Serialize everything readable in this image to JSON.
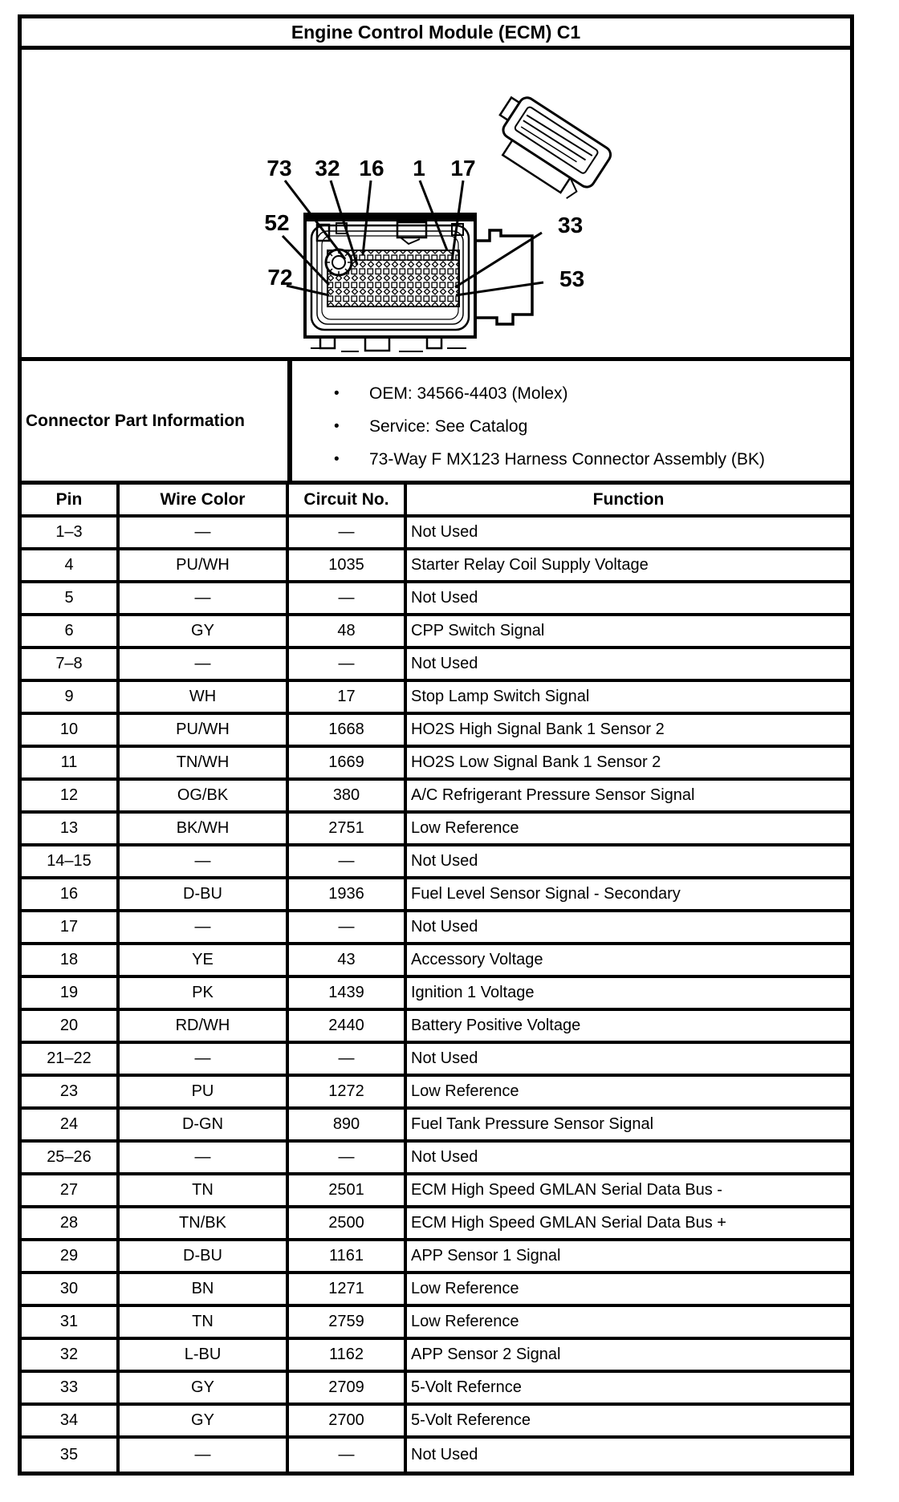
{
  "title": "Engine Control Module (ECM) C1",
  "diagram": {
    "description": "73-way ECM connector front view with terminal callouts",
    "callouts": [
      "73",
      "32",
      "16",
      "1",
      "17",
      "52",
      "72",
      "33",
      "53"
    ]
  },
  "part_info": {
    "label": "Connector Part Information",
    "bullet_glyph": "•",
    "bullets": [
      "OEM: 34566-4403 (Molex)",
      "Service: See Catalog",
      "73-Way F MX123 Harness Connector Assembly (BK)"
    ]
  },
  "table": {
    "headers": [
      "Pin",
      "Wire Color",
      "Circuit No.",
      "Function"
    ],
    "rows": [
      [
        "1–3",
        "—",
        "—",
        "Not Used"
      ],
      [
        "4",
        "PU/WH",
        "1035",
        "Starter Relay Coil Supply Voltage"
      ],
      [
        "5",
        "—",
        "—",
        "Not Used"
      ],
      [
        "6",
        "GY",
        "48",
        "CPP Switch Signal"
      ],
      [
        "7–8",
        "—",
        "—",
        "Not Used"
      ],
      [
        "9",
        "WH",
        "17",
        "Stop Lamp Switch Signal"
      ],
      [
        "10",
        "PU/WH",
        "1668",
        "HO2S High Signal Bank 1 Sensor 2"
      ],
      [
        "11",
        "TN/WH",
        "1669",
        "HO2S Low Signal Bank 1 Sensor 2"
      ],
      [
        "12",
        "OG/BK",
        "380",
        "A/C Refrigerant Pressure Sensor Signal"
      ],
      [
        "13",
        "BK/WH",
        "2751",
        "Low Reference"
      ],
      [
        "14–15",
        "—",
        "—",
        "Not Used"
      ],
      [
        "16",
        "D-BU",
        "1936",
        "Fuel Level Sensor Signal - Secondary"
      ],
      [
        "17",
        "—",
        "—",
        "Not Used"
      ],
      [
        "18",
        "YE",
        "43",
        "Accessory Voltage"
      ],
      [
        "19",
        "PK",
        "1439",
        "Ignition 1 Voltage"
      ],
      [
        "20",
        "RD/WH",
        "2440",
        "Battery Positive Voltage"
      ],
      [
        "21–22",
        "—",
        "—",
        "Not Used"
      ],
      [
        "23",
        "PU",
        "1272",
        "Low Reference"
      ],
      [
        "24",
        "D-GN",
        "890",
        "Fuel Tank Pressure Sensor Signal"
      ],
      [
        "25–26",
        "—",
        "—",
        "Not Used"
      ],
      [
        "27",
        "TN",
        "2501",
        "ECM High Speed GMLAN Serial Data Bus -"
      ],
      [
        "28",
        "TN/BK",
        "2500",
        "ECM High Speed GMLAN Serial Data Bus +"
      ],
      [
        "29",
        "D-BU",
        "1161",
        "APP Sensor 1 Signal"
      ],
      [
        "30",
        "BN",
        "1271",
        "Low Reference"
      ],
      [
        "31",
        "TN",
        "2759",
        "Low Reference"
      ],
      [
        "32",
        "L-BU",
        "1162",
        "APP Sensor 2 Signal"
      ],
      [
        "33",
        "GY",
        "2709",
        "5-Volt Refernce"
      ],
      [
        "34",
        "GY",
        "2700",
        "5-Volt Reference"
      ],
      [
        "35",
        "—",
        "—",
        "Not Used"
      ]
    ]
  },
  "colors": {
    "ink": "#000000",
    "paper": "#ffffff"
  }
}
